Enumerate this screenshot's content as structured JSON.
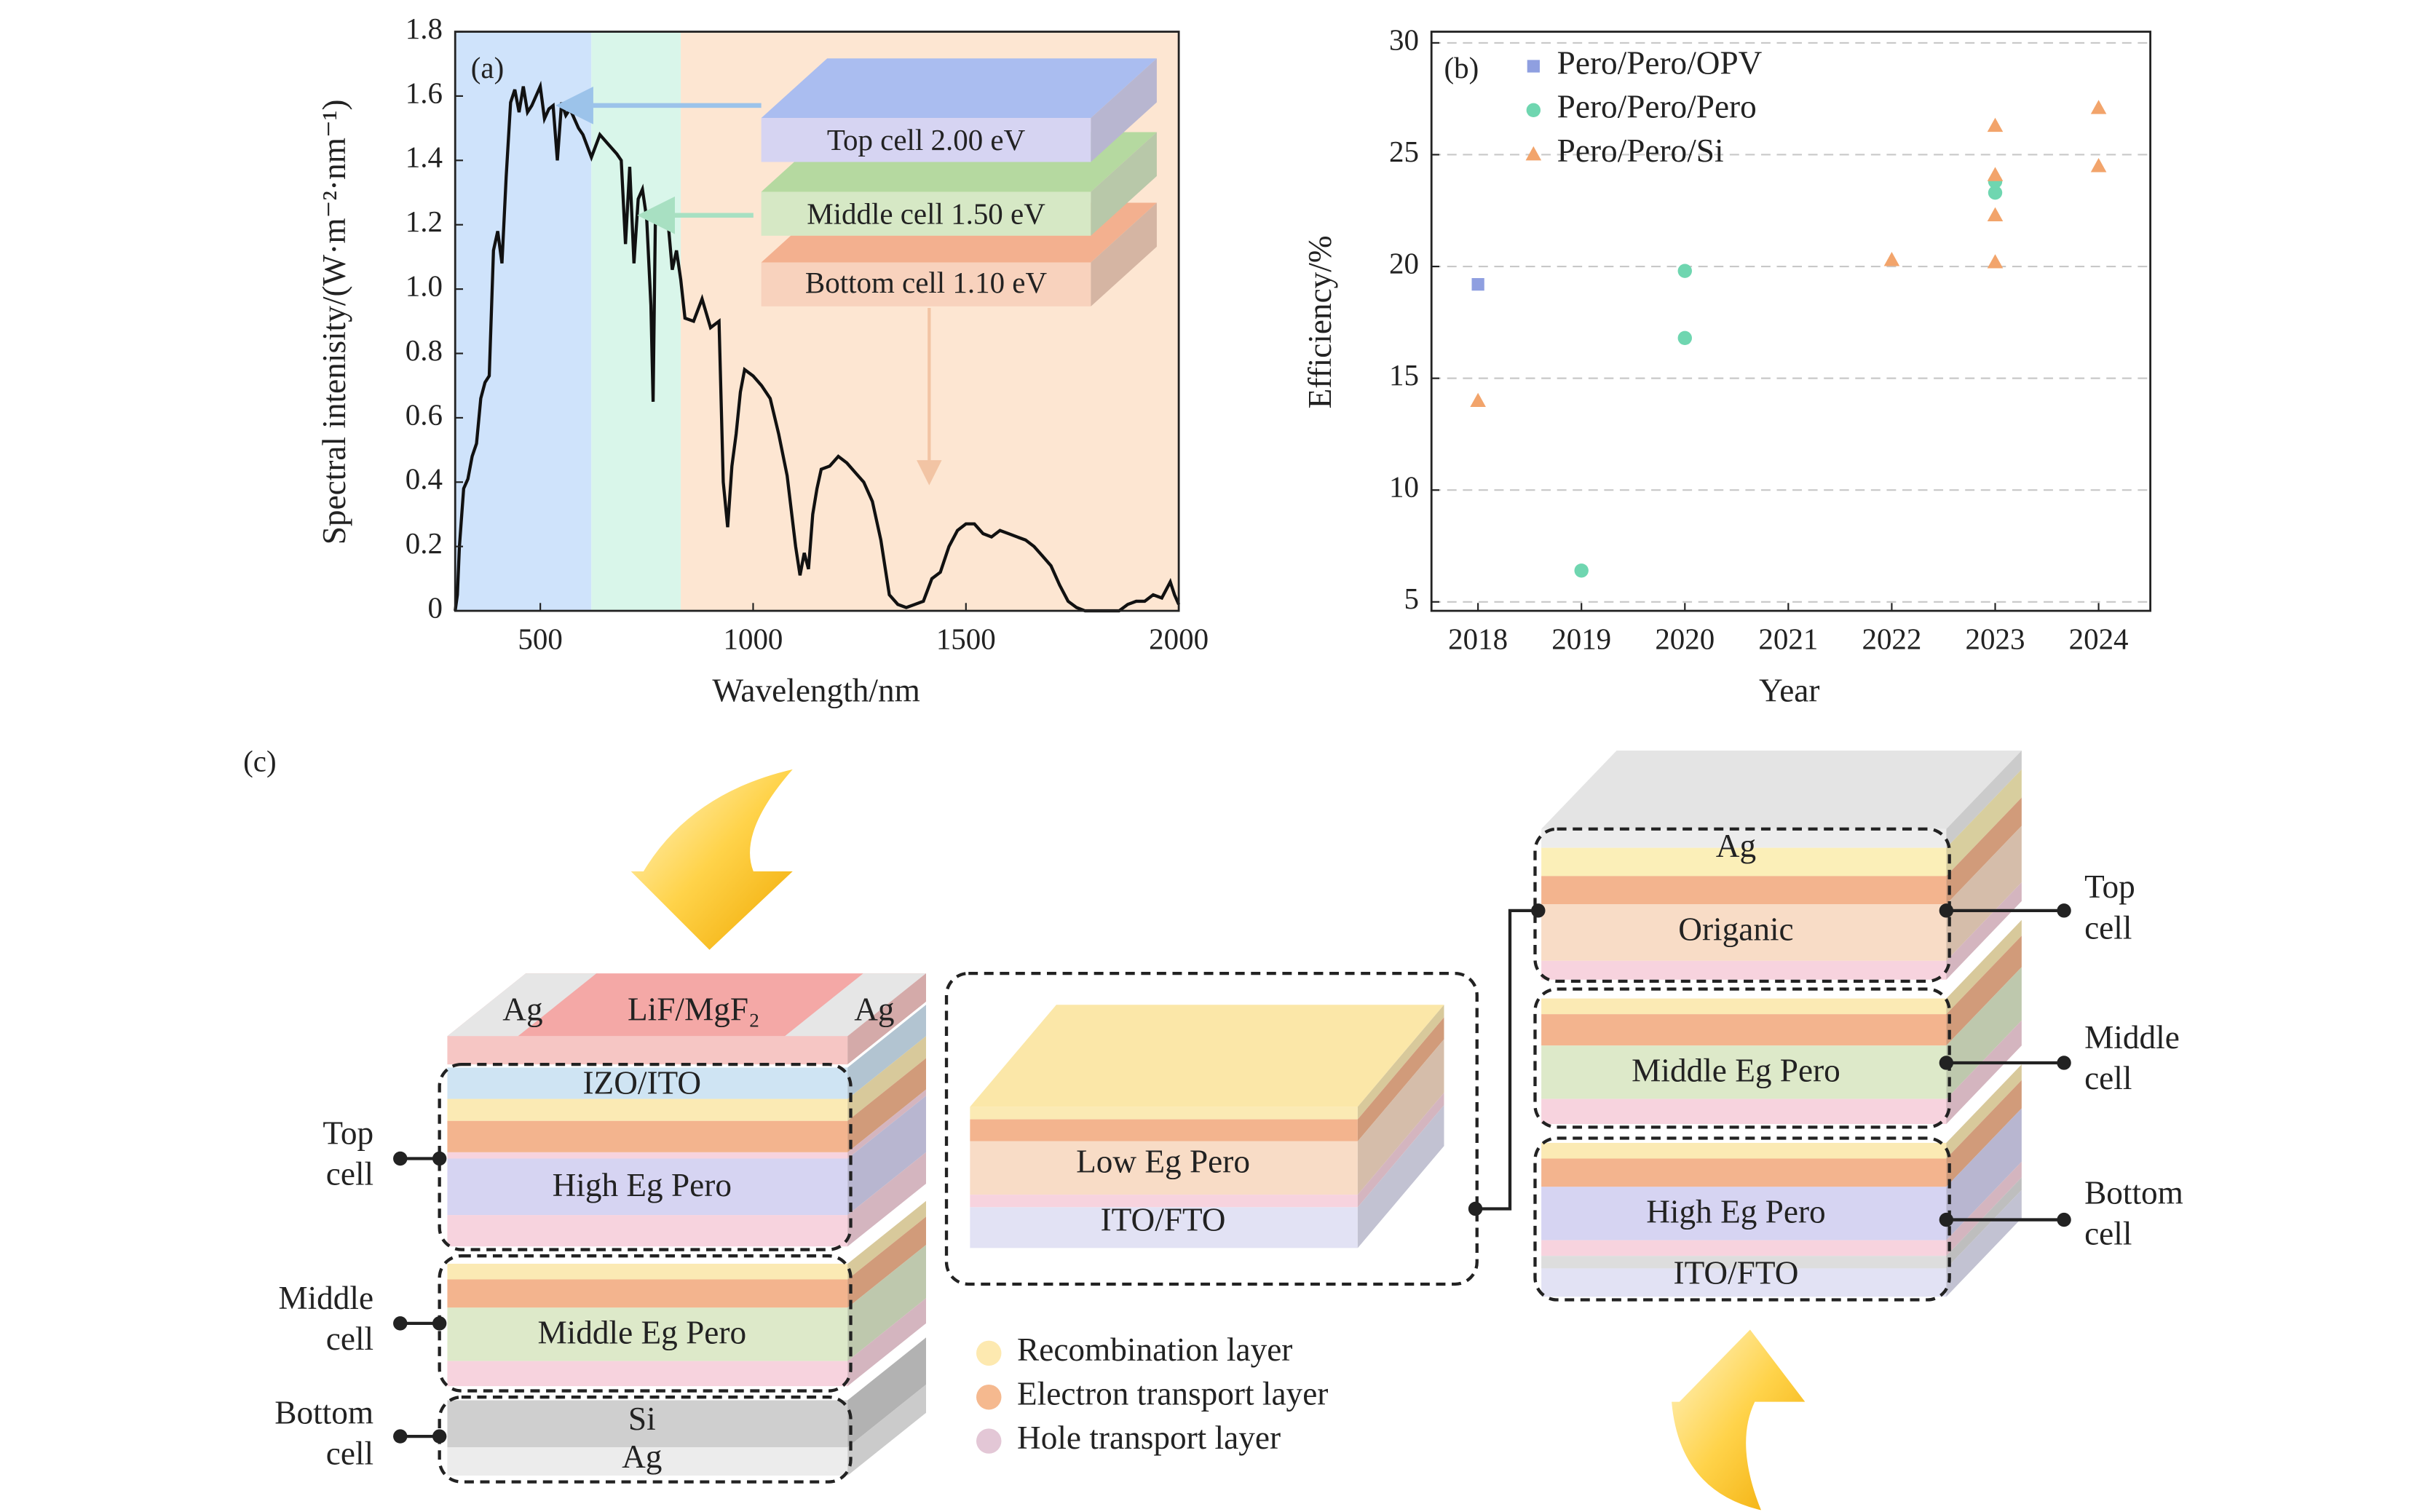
{
  "chart_data": [
    {
      "type": "line",
      "panel_label": "(a)",
      "x_label": "Wavelength/nm",
      "y_label": "Spectral intenisity/(W·m⁻²·nm⁻¹)",
      "xlim": [
        300,
        2000
      ],
      "xticks": [
        500,
        1000,
        1500,
        2000
      ],
      "ylim": [
        0,
        1.8
      ],
      "yticks": [
        0,
        0.2,
        0.4,
        0.6,
        0.8,
        {
          "value": 1,
          "label": "1.0"
        },
        1.2,
        1.4,
        1.6,
        1.8
      ],
      "color": "#111111",
      "regions": [
        {
          "xlim": [
            300,
            620
          ],
          "color": "#cfe3fb"
        },
        {
          "xlim": [
            620,
            830
          ],
          "color": "#d9f6ea"
        },
        {
          "xlim": [
            830,
            2000
          ],
          "color": "#fde6d2"
        }
      ],
      "annotations": [
        "Top cell 2.00 eV",
        "Middle cell 1.50 eV",
        "Bottom cell 1.10 eV"
      ],
      "x": [
        300,
        305,
        310,
        320,
        330,
        340,
        350,
        360,
        370,
        380,
        390,
        400,
        410,
        420,
        430,
        440,
        450,
        460,
        470,
        480,
        490,
        500,
        510,
        520,
        530,
        540,
        550,
        560,
        570,
        580,
        590,
        600,
        620,
        640,
        660,
        680,
        690,
        700,
        710,
        720,
        730,
        740,
        750,
        760,
        765,
        770,
        780,
        790,
        800,
        810,
        820,
        830,
        840,
        860,
        880,
        900,
        920,
        930,
        940,
        950,
        960,
        970,
        980,
        1000,
        1020,
        1040,
        1060,
        1080,
        1100,
        1110,
        1120,
        1130,
        1140,
        1150,
        1160,
        1180,
        1200,
        1220,
        1240,
        1260,
        1280,
        1300,
        1320,
        1340,
        1360,
        1380,
        1400,
        1420,
        1440,
        1460,
        1480,
        1500,
        1520,
        1540,
        1560,
        1580,
        1600,
        1620,
        1640,
        1660,
        1680,
        1700,
        1720,
        1740,
        1760,
        1780,
        1800,
        1820,
        1840,
        1860,
        1880,
        1900,
        1920,
        1940,
        1960,
        1980,
        1990,
        2000
      ],
      "values": [
        0,
        0.05,
        0.2,
        0.38,
        0.41,
        0.48,
        0.52,
        0.66,
        0.71,
        0.73,
        1.12,
        1.18,
        1.08,
        1.35,
        1.58,
        1.62,
        1.55,
        1.63,
        1.55,
        1.57,
        1.6,
        1.63,
        1.53,
        1.56,
        1.57,
        1.4,
        1.58,
        1.54,
        1.56,
        1.53,
        1.5,
        1.48,
        1.41,
        1.48,
        1.45,
        1.42,
        1.4,
        1.14,
        1.38,
        1.08,
        1.28,
        1.31,
        1.22,
        0.95,
        0.65,
        1.2,
        1.22,
        1.25,
        1.21,
        1.06,
        1.12,
        1.03,
        0.91,
        0.9,
        0.97,
        0.88,
        0.9,
        0.4,
        0.26,
        0.45,
        0.55,
        0.68,
        0.75,
        0.73,
        0.7,
        0.66,
        0.55,
        0.42,
        0.2,
        0.11,
        0.18,
        0.13,
        0.3,
        0.38,
        0.44,
        0.45,
        0.48,
        0.46,
        0.43,
        0.4,
        0.34,
        0.22,
        0.05,
        0.02,
        0.01,
        0.02,
        0.03,
        0.1,
        0.12,
        0.2,
        0.25,
        0.27,
        0.27,
        0.24,
        0.23,
        0.25,
        0.24,
        0.23,
        0.22,
        0.2,
        0.17,
        0.14,
        0.08,
        0.03,
        0.01,
        0,
        0,
        0,
        0,
        0,
        0.02,
        0.03,
        0.03,
        0.05,
        0.04,
        0.09,
        0.05,
        0.02
      ]
    },
    {
      "type": "scatter",
      "panel_label": "(b)",
      "x_label": "Year",
      "y_label": "Efficiency/%",
      "xlim": [
        2017.55,
        2024.5
      ],
      "xticks": [
        2018,
        2019,
        2020,
        2021,
        2022,
        2023,
        2024
      ],
      "ylim": [
        4.6,
        30.5
      ],
      "yticks": [
        5,
        10,
        15,
        20,
        25,
        30
      ],
      "grid": true,
      "legend": "upper left",
      "series": [
        {
          "name": "Pero/Pero/OPV",
          "color": "#8f9fe0",
          "marker": "square",
          "x": [
            2018
          ],
          "values": [
            19.2
          ]
        },
        {
          "name": "Pero/Pero/Pero",
          "color": "#6fd6b0",
          "marker": "circle",
          "x": [
            2019,
            2020,
            2020,
            2023,
            2023
          ],
          "values": [
            6.4,
            19.8,
            16.8,
            23.3,
            23.8
          ]
        },
        {
          "name": "Pero/Pero/Si",
          "color": "#f2a46b",
          "marker": "triangle",
          "x": [
            2018,
            2022,
            2023,
            2023,
            2023,
            2023,
            2024,
            2024
          ],
          "values": [
            14.0,
            20.3,
            26.3,
            24.1,
            22.3,
            20.2,
            27.1,
            24.5
          ]
        }
      ]
    }
  ],
  "diagram": {
    "label": "(c)",
    "left_stack": {
      "top_labels": [
        "Ag",
        "LiF/MgF₂",
        "Ag"
      ],
      "layers": [
        "IZO/ITO",
        "High Eg Pero",
        "Middle Eg Pero",
        "Si",
        "Ag"
      ],
      "cells": [
        [
          "Top",
          "cell"
        ],
        [
          "Middle",
          "cell"
        ],
        [
          "Bottom",
          "cell"
        ]
      ]
    },
    "middle_stack": {
      "layers": [
        "Low Eg Pero",
        "ITO/FTO"
      ]
    },
    "right_stack": {
      "layers": [
        "Ag",
        "Origanic",
        "Middle Eg Pero",
        "High Eg Pero",
        "ITO/FTO"
      ],
      "cells": [
        [
          "Top",
          "cell"
        ],
        [
          "Middle",
          "cell"
        ],
        [
          "Bottom",
          "cell"
        ]
      ]
    },
    "legend": [
      "Recombination layer",
      "Electron transport layer",
      "Hole transport layer"
    ]
  }
}
